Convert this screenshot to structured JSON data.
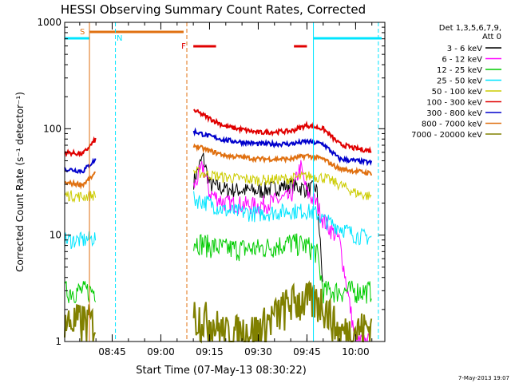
{
  "colors": {
    "axis": "#000000",
    "cyan": "#00e5ff",
    "orange": "#e07010",
    "red": "#e00000",
    "saa": "#e07010"
  },
  "chart_data": {
    "type": "line",
    "title": "HESSI Observing Summary Count Rates, Corrected",
    "xlabel": "Start Time (07-May-13 08:30:22)",
    "ylabel": "Corrected Count Rate (s⁻¹ detector⁻¹)",
    "y_scale": "log",
    "ylim": [
      1,
      1000
    ],
    "xlim": [
      "08:30",
      "10:09"
    ],
    "x_ticks": [
      {
        "label": "08:45",
        "t": "08:45"
      },
      {
        "label": "09:00",
        "t": "09:00"
      },
      {
        "label": "09:15",
        "t": "09:15"
      },
      {
        "label": "09:30",
        "t": "09:30"
      },
      {
        "label": "09:45",
        "t": "09:45"
      },
      {
        "label": "10:00",
        "t": "10:00"
      }
    ],
    "y_ticks": [
      {
        "label": "1",
        "v": 1
      },
      {
        "label": "10",
        "v": 10
      },
      {
        "label": "100",
        "v": 100
      },
      {
        "label": "1000",
        "v": 1000
      }
    ],
    "legend": {
      "header": [
        "Det 1,3,5,6,7,9,",
        "Att 0"
      ],
      "placement": "right"
    },
    "series": [
      {
        "name": "3 - 6 keV",
        "color": "#000000",
        "x": [
          "08:30",
          "08:40",
          "09:08",
          "09:10",
          "09:13",
          "09:15",
          "09:20",
          "09:30",
          "09:40",
          "09:45",
          "09:48",
          "09:50"
        ],
        "y": [
          null,
          null,
          null,
          32,
          55,
          30,
          27,
          26,
          30,
          27,
          28,
          3
        ]
      },
      {
        "name": "6 - 12 keV",
        "color": "#ff00ff",
        "x": [
          "08:30",
          "08:40",
          "09:08",
          "09:10",
          "09:13",
          "09:15",
          "09:20",
          "09:30",
          "09:40",
          "09:43",
          "09:45",
          "09:48",
          "09:50",
          "09:55",
          "10:00",
          "10:05"
        ],
        "y": [
          null,
          null,
          null,
          28,
          45,
          25,
          20,
          19,
          23,
          45,
          25,
          20,
          14,
          9,
          1,
          1
        ]
      },
      {
        "name": "12 - 25 keV",
        "color": "#00cc00",
        "x": [
          "08:30",
          "08:36",
          "08:40",
          "09:08",
          "09:10",
          "09:15",
          "09:20",
          "09:30",
          "09:40",
          "09:45",
          "09:48",
          "09:50",
          "10:00",
          "10:05"
        ],
        "y": [
          3,
          3,
          3,
          null,
          9,
          8,
          7.5,
          7.5,
          8.5,
          8,
          7,
          3,
          3,
          3
        ]
      },
      {
        "name": "25 - 50 keV",
        "color": "#00e5ff",
        "x": [
          "08:30",
          "08:36",
          "08:40",
          "09:08",
          "09:10",
          "09:15",
          "09:20",
          "09:30",
          "09:40",
          "09:45",
          "09:48",
          "09:50",
          "09:55",
          "10:00",
          "10:05"
        ],
        "y": [
          9,
          9,
          9.5,
          null,
          22,
          20,
          17,
          16,
          17,
          17,
          16,
          14,
          12,
          10,
          9.5
        ]
      },
      {
        "name": "50 - 100 keV",
        "color": "#cccc00",
        "x": [
          "08:30",
          "08:36",
          "08:40",
          "09:08",
          "09:10",
          "09:15",
          "09:20",
          "09:30",
          "09:40",
          "09:45",
          "09:50",
          "09:55",
          "10:00",
          "10:05"
        ],
        "y": [
          24,
          23,
          24,
          null,
          40,
          37,
          35,
          33,
          34,
          36,
          35,
          30,
          25,
          23
        ]
      },
      {
        "name": "100 - 300 keV",
        "color": "#e00000",
        "x": [
          "08:30",
          "08:36",
          "08:40",
          "09:08",
          "09:10",
          "09:15",
          "09:20",
          "09:30",
          "09:40",
          "09:45",
          "09:50",
          "09:55",
          "10:00",
          "10:05"
        ],
        "y": [
          60,
          58,
          80,
          null,
          150,
          125,
          105,
          92,
          95,
          108,
          100,
          72,
          65,
          62
        ]
      },
      {
        "name": "300 - 800 keV",
        "color": "#0000cc",
        "x": [
          "08:30",
          "08:36",
          "08:40",
          "09:08",
          "09:10",
          "09:15",
          "09:20",
          "09:30",
          "09:40",
          "09:45",
          "09:50",
          "09:55",
          "10:00",
          "10:05"
        ],
        "y": [
          42,
          40,
          52,
          null,
          95,
          85,
          78,
          72,
          72,
          76,
          72,
          52,
          50,
          48
        ]
      },
      {
        "name": "800 - 7000 keV",
        "color": "#e07010",
        "x": [
          "08:30",
          "08:36",
          "08:40",
          "09:08",
          "09:10",
          "09:15",
          "09:20",
          "09:30",
          "09:40",
          "09:45",
          "09:50",
          "09:55",
          "10:00",
          "10:05"
        ],
        "y": [
          31,
          30,
          38,
          null,
          70,
          62,
          56,
          52,
          52,
          56,
          52,
          42,
          40,
          38
        ]
      },
      {
        "name": "7000 - 20000 keV",
        "color": "#808000",
        "x": [
          "08:30",
          "08:36",
          "08:40",
          "09:08",
          "09:10",
          "09:15",
          "09:20",
          "09:30",
          "09:40",
          "09:45",
          "09:50",
          "09:55",
          "10:00",
          "10:05"
        ],
        "y": [
          1.5,
          1.6,
          1.5,
          null,
          1.8,
          1.6,
          1.2,
          1.3,
          2.4,
          2.5,
          2.4,
          1.2,
          1.3,
          1.4
        ]
      }
    ],
    "annotations": {
      "night_bars": [
        {
          "from": "08:30",
          "to": "08:38"
        },
        {
          "from": "09:47",
          "to": "10:08"
        }
      ],
      "saa_bar": {
        "label": "S",
        "from": "08:38",
        "to": "09:07"
      },
      "flare_bars": [
        {
          "label": "F",
          "from": "09:10",
          "to": "09:17"
        },
        {
          "from": "09:41",
          "to": "09:45"
        }
      ],
      "n_label": "N",
      "vlines": [
        {
          "t": "08:38",
          "color": "#e07010",
          "dash": false
        },
        {
          "t": "08:46",
          "color": "#00e5ff",
          "dash": true
        },
        {
          "t": "09:08",
          "color": "#e07010",
          "dash": true
        },
        {
          "t": "09:47",
          "color": "#00e5ff",
          "dash": false
        },
        {
          "t": "10:07",
          "color": "#00e5ff",
          "dash": true
        }
      ]
    },
    "footer_date": "7-May-2013 19:07"
  }
}
